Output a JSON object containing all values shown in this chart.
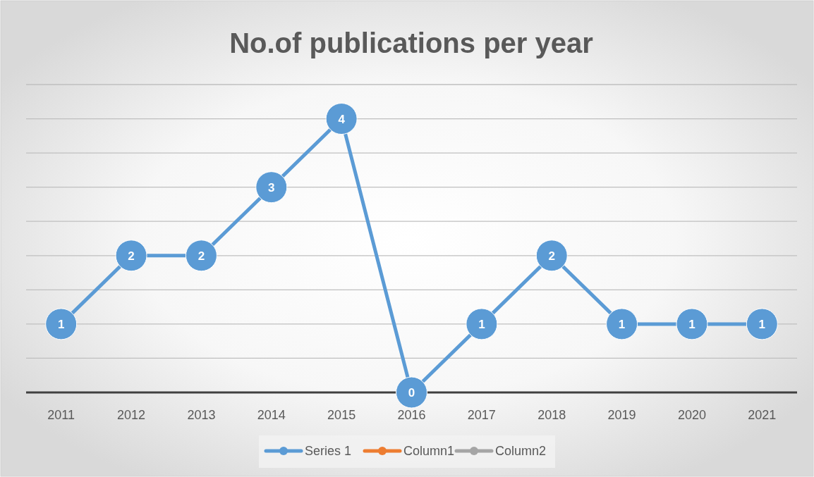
{
  "chart_data": {
    "type": "line",
    "title": "No.of publications per year",
    "categories": [
      "2011",
      "2012",
      "2013",
      "2014",
      "2015",
      "2016",
      "2017",
      "2018",
      "2019",
      "2020",
      "2021"
    ],
    "series": [
      {
        "name": "Series 1",
        "color": "#5b9bd5",
        "values": [
          1,
          2,
          2,
          3,
          4,
          0,
          1,
          2,
          1,
          1,
          1
        ]
      },
      {
        "name": "Column1",
        "color": "#ed7d31",
        "values": [
          null,
          null,
          null,
          null,
          null,
          null,
          null,
          null,
          null,
          null,
          null
        ]
      },
      {
        "name": "Column2",
        "color": "#a5a5a5",
        "values": [
          null,
          null,
          null,
          null,
          null,
          null,
          null,
          null,
          null,
          null,
          null
        ]
      }
    ],
    "ylim": [
      0,
      4.5
    ],
    "yticks": [
      {
        "value": 0,
        "label": null
      },
      {
        "value": 0.5,
        "label": null
      },
      {
        "value": 1,
        "label": null
      },
      {
        "value": 1.5,
        "label": null
      },
      {
        "value": 2,
        "label": null
      },
      {
        "value": 2.5,
        "label": null
      },
      {
        "value": 3,
        "label": null
      },
      {
        "value": 3.5,
        "label": null
      },
      {
        "value": 4,
        "label": null
      },
      {
        "value": 4.5,
        "label": null
      }
    ],
    "tick_labels": "x",
    "grid": "y",
    "legend": "bottom",
    "marker": "circle",
    "line_style": "solid",
    "data_labels": true
  }
}
